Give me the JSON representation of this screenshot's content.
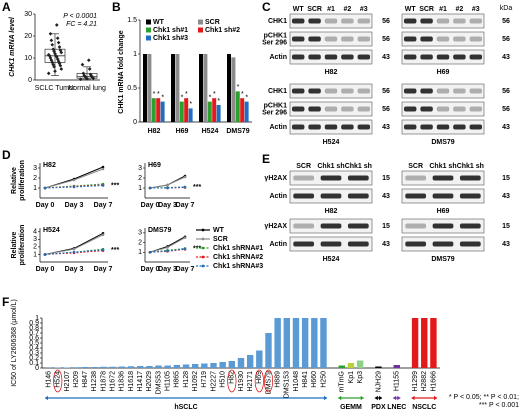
{
  "panels": {
    "letters": [
      "A",
      "B",
      "C",
      "D",
      "E",
      "F"
    ]
  },
  "chart_data": [
    {
      "type": "box",
      "ylabel": "CHK1 mRNA level",
      "categories": [
        "SCLC Tumor",
        "Normal lung"
      ],
      "boxes": [
        {
          "min": 2,
          "q1": 8,
          "median": 11,
          "q3": 14,
          "max": 21
        },
        {
          "min": 0.2,
          "q1": 0.8,
          "median": 1.5,
          "q3": 3,
          "max": 6
        }
      ],
      "points": [
        [
          3,
          4,
          5,
          6,
          6.5,
          7,
          7.5,
          8,
          8.5,
          9,
          9.5,
          10,
          10.5,
          11,
          11,
          11.5,
          12,
          12.5,
          13,
          13.5,
          14,
          15,
          16,
          17,
          18,
          19,
          21,
          25
        ],
        [
          0.3,
          0.5,
          0.8,
          1,
          1.2,
          1.5,
          1.8,
          2,
          2.5,
          3,
          5,
          7,
          9
        ]
      ],
      "ylim": [
        0,
        30
      ],
      "yticks": [
        0,
        10,
        20,
        30
      ],
      "annotations": [
        "P < 0.0001",
        "FC = 4.21"
      ]
    },
    {
      "type": "bar",
      "ylabel": "CHK1 mRNA fold change",
      "categories": [
        "H82",
        "H69",
        "H524",
        "DMS79"
      ],
      "series": [
        {
          "name": "WT",
          "color": "#000000",
          "values": [
            1,
            1,
            1,
            1
          ]
        },
        {
          "name": "SCR",
          "color": "#8c8c8c",
          "values": [
            1,
            1,
            1,
            0.95
          ]
        },
        {
          "name": "Chk1 sh#1",
          "color": "#2ca02c",
          "values": [
            0.35,
            0.3,
            0.3,
            0.45
          ]
        },
        {
          "name": "Chk1 sh#2",
          "color": "#e31a1c",
          "values": [
            0.35,
            0.35,
            0.35,
            0.35
          ]
        },
        {
          "name": "Chk1 sh#3",
          "color": "#1f6fc0",
          "values": [
            0.3,
            0.2,
            0.25,
            0.3
          ]
        }
      ],
      "ylim": [
        0,
        1.5
      ],
      "yticks": [
        0,
        0.5,
        1,
        1.5
      ],
      "sig_label": "*"
    },
    {
      "type": "line",
      "title": "H82",
      "ylabel": [
        "Relative",
        "proliferation"
      ],
      "categories": [
        "Day 0",
        "Day 3",
        "Day 7"
      ],
      "series": [
        {
          "name": "WT",
          "color": "#000000",
          "dashed": false,
          "values": [
            1,
            1.9,
            3.1
          ]
        },
        {
          "name": "SCR",
          "color": "#8c8c8c",
          "dashed": false,
          "values": [
            1,
            1.8,
            2.9
          ]
        },
        {
          "name": "Chk1 shRNA#1",
          "color": "#2ca02c",
          "dashed": true,
          "values": [
            1,
            1.2,
            1.4
          ]
        },
        {
          "name": "Chk1 shRNA#2",
          "color": "#e31a1c",
          "dashed": true,
          "values": [
            1,
            1.15,
            1.3
          ]
        },
        {
          "name": "Chk1 shRNA#3",
          "color": "#1f6fc0",
          "dashed": true,
          "values": [
            1,
            1.1,
            1.25
          ]
        }
      ],
      "ylim": [
        0,
        3.5
      ],
      "yticks": [
        1,
        2,
        3
      ],
      "annotation": "***"
    },
    {
      "type": "line",
      "title": "H69",
      "categories": [
        "Day 0",
        "Day 3",
        "Day 7"
      ],
      "series": [
        {
          "name": "WT",
          "color": "#000000",
          "dashed": false,
          "values": [
            1,
            1.3,
            2.2
          ]
        },
        {
          "name": "SCR",
          "color": "#8c8c8c",
          "dashed": false,
          "values": [
            1,
            1.3,
            2.1
          ]
        },
        {
          "name": "Chk1 shRNA#1",
          "color": "#2ca02c",
          "dashed": true,
          "values": [
            1,
            1.05,
            1.1
          ]
        },
        {
          "name": "Chk1 shRNA#2",
          "color": "#e31a1c",
          "dashed": true,
          "values": [
            1,
            1,
            1.05
          ]
        },
        {
          "name": "Chk1 shRNA#3",
          "color": "#1f6fc0",
          "dashed": true,
          "values": [
            1,
            1,
            1.1
          ]
        }
      ],
      "ylim": [
        0,
        3.5
      ],
      "yticks": [
        1,
        2,
        3
      ],
      "annotation": "***"
    },
    {
      "type": "line",
      "title": "H524",
      "ylabel": [
        "Relative",
        "proliferation"
      ],
      "categories": [
        "Day 0",
        "Day 3",
        "Day 7"
      ],
      "series": [
        {
          "name": "WT",
          "color": "#000000",
          "dashed": false,
          "values": [
            1,
            1.8,
            3.8
          ]
        },
        {
          "name": "SCR",
          "color": "#8c8c8c",
          "dashed": false,
          "values": [
            1,
            1.7,
            3.6
          ]
        },
        {
          "name": "Chk1 shRNA#1",
          "color": "#2ca02c",
          "dashed": true,
          "values": [
            1,
            1.3,
            1.7
          ]
        },
        {
          "name": "Chk1 shRNA#2",
          "color": "#e31a1c",
          "dashed": true,
          "values": [
            1,
            1.2,
            1.5
          ]
        },
        {
          "name": "Chk1 shRNA#3",
          "color": "#1f6fc0",
          "dashed": true,
          "values": [
            1,
            1.3,
            1.6
          ]
        }
      ],
      "ylim": [
        0,
        4.5
      ],
      "yticks": [
        1,
        2,
        3,
        4
      ],
      "annotation": "***"
    },
    {
      "type": "line",
      "title": "DMS79",
      "categories": [
        "Day 0",
        "Day 3",
        "Day 7"
      ],
      "series": [
        {
          "name": "WT",
          "color": "#000000",
          "dashed": false,
          "values": [
            1,
            1.6,
            2.6
          ]
        },
        {
          "name": "SCR",
          "color": "#8c8c8c",
          "dashed": false,
          "values": [
            1,
            1.5,
            2.5
          ]
        },
        {
          "name": "Chk1 shRNA#1",
          "color": "#2ca02c",
          "dashed": true,
          "values": [
            1,
            1.2,
            1.4
          ]
        },
        {
          "name": "Chk1 shRNA#2",
          "color": "#e31a1c",
          "dashed": true,
          "values": [
            1,
            1.1,
            1.3
          ]
        },
        {
          "name": "Chk1 shRNA#3",
          "color": "#1f6fc0",
          "dashed": true,
          "values": [
            1,
            1.15,
            1.35
          ]
        }
      ],
      "ylim": [
        0,
        3.5
      ],
      "yticks": [
        1,
        2,
        3
      ],
      "annotation": "***"
    },
    {
      "type": "groupbar",
      "ylabel": "IC50 of LY2606368 (μmol/L)",
      "ylim": [
        0,
        1
      ],
      "yticks": [
        0,
        0.1,
        0.2,
        0.3,
        0.4,
        0.5,
        0.6,
        0.7,
        0.8,
        0.9,
        1
      ],
      "groups": [
        {
          "name": "hSCLC",
          "color": "#1f6fc0",
          "categories": [
            "H146",
            "H524",
            "H2107",
            "H209",
            "H847",
            "H1238",
            "H1878",
            "H1672",
            "H1836",
            "H1618",
            "H1417",
            "H2029",
            "DMS53",
            "H1105",
            "H865",
            "H128",
            "H1092",
            "H719",
            "H2227",
            "H510",
            "H82",
            "H1930",
            "H2171",
            "H69",
            "DMS79",
            "H889",
            "DMS153",
            "H1048",
            "H841",
            "H660",
            "H250"
          ],
          "colors": [
            "#5b9bd5"
          ],
          "values": [
            0.005,
            0.01,
            0.01,
            0.015,
            0.02,
            0.02,
            0.025,
            0.025,
            0.03,
            0.035,
            0.04,
            0.04,
            0.05,
            0.05,
            0.06,
            0.07,
            0.08,
            0.09,
            0.1,
            0.12,
            0.14,
            0.2,
            0.26,
            0.35,
            0.7,
            1,
            1,
            1,
            1,
            1,
            1
          ]
        },
        {
          "name": "GEMM",
          "color": "#2ca02c",
          "categories": [
            "mTmG",
            "Kp1",
            "Kp3"
          ],
          "colors": [
            "#2ca02c",
            "#b5d334",
            "#8fd18a"
          ],
          "values": [
            0.05,
            0.1,
            0.15
          ]
        },
        {
          "name": "PDX",
          "color": "#000000",
          "categories": [
            "NJH29"
          ],
          "colors": [
            "#000000"
          ],
          "values": [
            0.03
          ]
        },
        {
          "name": "LNEC",
          "color": "#7030a0",
          "categories": [
            "H1155"
          ],
          "colors": [
            "#7030a0"
          ],
          "values": [
            0.06
          ]
        },
        {
          "name": "NSCLC",
          "color": "#e31a1c",
          "categories": [
            "H1299",
            "H2882",
            "H1666"
          ],
          "colors": [
            "#e31a1c"
          ],
          "values": [
            1,
            1,
            1
          ]
        }
      ],
      "circled": [
        "H524",
        "H82",
        "H69",
        "DMS79"
      ],
      "footnote": [
        "* P < 0.05; ** P < 0.01;",
        "*** P < 0.001"
      ]
    }
  ],
  "blots_C": {
    "kda_label": "kDa",
    "lanes": [
      "WT",
      "SCR",
      "#1",
      "#2",
      "#3"
    ],
    "groups": [
      {
        "cells": [
          "H82",
          "H69"
        ],
        "rows": [
          {
            "label": [
              "CHK1"
            ],
            "kda": 56
          },
          {
            "label": [
              "pCHK1",
              "Ser 296"
            ],
            "kda": 56
          },
          {
            "label": [
              "Actin"
            ],
            "kda": 43
          }
        ]
      },
      {
        "cells": [
          "H524",
          "DMS79"
        ],
        "rows": [
          {
            "label": [
              "CHK1"
            ],
            "kda": 56
          },
          {
            "label": [
              "pCHK1",
              "Ser 296"
            ],
            "kda": 56
          },
          {
            "label": [
              "Actin"
            ],
            "kda": 43
          }
        ]
      }
    ]
  },
  "blots_E": {
    "lanes": [
      "SCR",
      "Chk1 sh",
      "Chk1 sh"
    ],
    "groups": [
      {
        "cells": [
          "H82",
          "H69"
        ],
        "rows": [
          {
            "label": [
              "γH2AX"
            ],
            "kda": 15
          },
          {
            "label": [
              "Actin"
            ],
            "kda": 43
          }
        ]
      },
      {
        "cells": [
          "H524",
          "DMS79"
        ],
        "rows": [
          {
            "label": [
              "γH2AX"
            ],
            "kda": 15
          },
          {
            "label": [
              "Actin"
            ],
            "kda": 43
          }
        ]
      }
    ]
  }
}
